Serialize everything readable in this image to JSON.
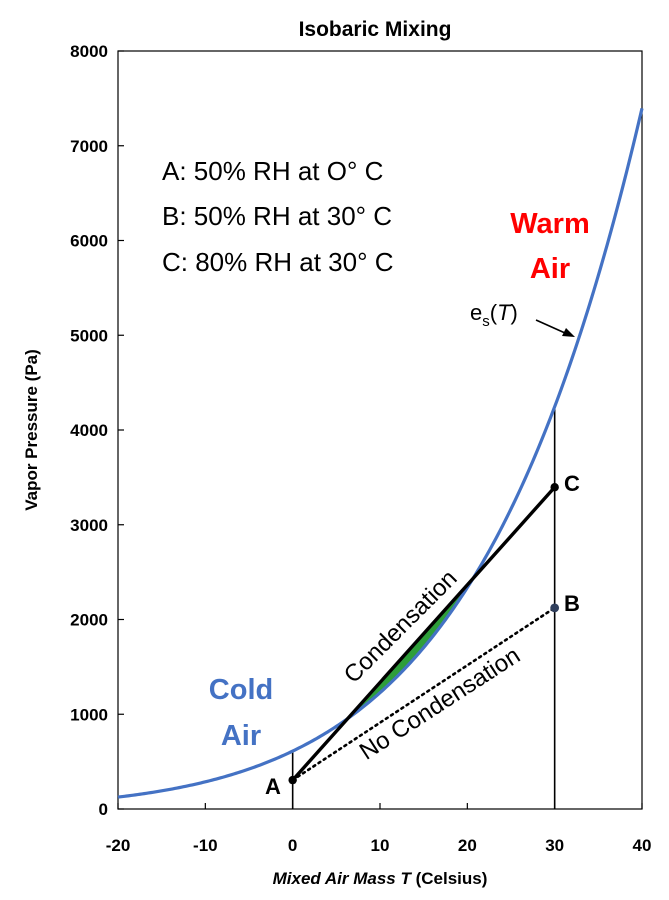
{
  "chart_data": {
    "type": "line",
    "title": "Isobaric Mixing",
    "xlabel": "Mixed Air Mass T (Celsius)",
    "xlabel_parts": {
      "prefix": "Mixed Air Mass ",
      "var": "T",
      "suffix": " (Celsius)"
    },
    "ylabel": "Vapor Pressure (Pa)",
    "xlim": [
      -20,
      40
    ],
    "ylim": [
      0,
      8000
    ],
    "x_ticks": [
      -20,
      -10,
      0,
      10,
      20,
      30,
      40
    ],
    "x_tick_labels": [
      "-20",
      "-10",
      "0",
      "10",
      "20",
      "30",
      "40"
    ],
    "y_ticks": [
      0,
      1000,
      2000,
      3000,
      4000,
      5000,
      6000,
      7000,
      8000
    ],
    "y_tick_labels": [
      "0",
      "1000",
      "2000",
      "3000",
      "4000",
      "5000",
      "6000",
      "7000",
      "8000"
    ],
    "saturation_curve": {
      "name": "es(T)",
      "label_main": "e",
      "label_sub": "s",
      "label_var": "T",
      "x": [
        -20,
        -15,
        -10,
        -5,
        0,
        5,
        10,
        15,
        20,
        25,
        30,
        35,
        40
      ],
      "y": [
        125,
        191,
        286,
        422,
        611,
        872,
        1228,
        1705,
        2338,
        3169,
        4245,
        5627,
        7383
      ],
      "color": "#4472C4"
    },
    "points": [
      {
        "name": "A",
        "x": 0,
        "y": 305
      },
      {
        "name": "B",
        "x": 30,
        "y": 2123
      },
      {
        "name": "C",
        "x": 30,
        "y": 3396
      }
    ],
    "mixing_lines": [
      {
        "name": "Condensation",
        "from": "A",
        "to": "C",
        "style": "solid"
      },
      {
        "name": "No Condensation",
        "from": "A",
        "to": "B",
        "style": "dotted"
      }
    ],
    "condensation_region": {
      "x_range": [
        6,
        21
      ],
      "color": "#2E9E3A"
    },
    "vertical_lines": [
      {
        "x": 0,
        "y_from": 0,
        "y_to": 620
      },
      {
        "x": 30,
        "y_from": 0,
        "y_to": 4245
      }
    ],
    "legend_lines": [
      "A: 50% RH at O° C",
      "B: 50% RH at 30° C",
      "C: 80% RH at 30° C"
    ],
    "annotations": {
      "cold_line1": "Cold",
      "cold_line2": "Air",
      "warm_line1": "Warm",
      "warm_line2": "Air",
      "condensation": "Condensation",
      "no_condensation": "No Condensation"
    },
    "colors": {
      "cold": "#4472C4",
      "warm": "#FF0000",
      "curve": "#4472C4",
      "green": "#2E9E3A"
    }
  }
}
